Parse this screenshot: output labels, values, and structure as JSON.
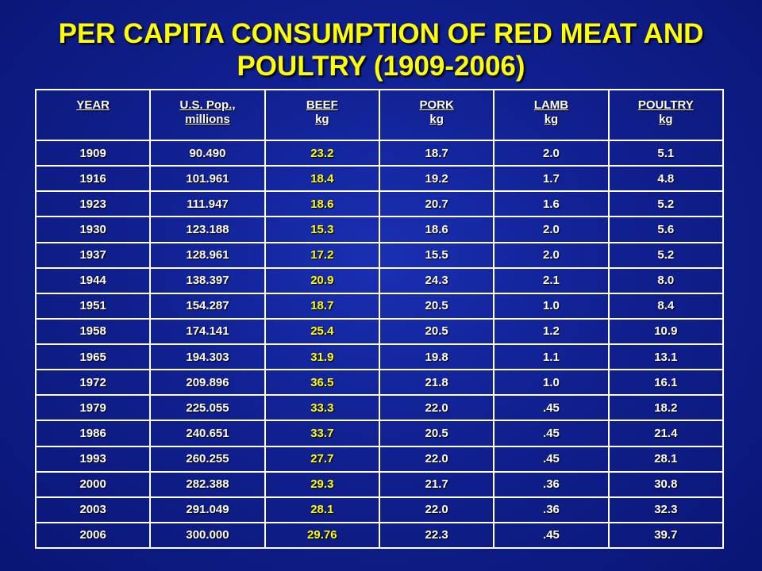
{
  "slide": {
    "title_line1": "PER CAPITA CONSUMPTION OF RED MEAT AND",
    "title_line2": "POULTRY (1909-2006)"
  },
  "table": {
    "headers": [
      {
        "line1": "YEAR",
        "line2": ""
      },
      {
        "line1": "U.S. Pop.,",
        "line2": "millions"
      },
      {
        "line1": "BEEF",
        "line2": "kg"
      },
      {
        "line1": "PORK",
        "line2": "kg"
      },
      {
        "line1": "LAMB",
        "line2": "kg"
      },
      {
        "line1": "POULTRY",
        "line2": "kg"
      }
    ],
    "rows": [
      [
        "1909",
        "90.490",
        "23.2",
        "18.7",
        "2.0",
        "5.1"
      ],
      [
        "1916",
        "101.961",
        "18.4",
        "19.2",
        "1.7",
        "4.8"
      ],
      [
        "1923",
        "111.947",
        "18.6",
        "20.7",
        "1.6",
        "5.2"
      ],
      [
        "1930",
        "123.188",
        "15.3",
        "18.6",
        "2.0",
        "5.6"
      ],
      [
        "1937",
        "128.961",
        "17.2",
        "15.5",
        "2.0",
        "5.2"
      ],
      [
        "1944",
        "138.397",
        "20.9",
        "24.3",
        "2.1",
        "8.0"
      ],
      [
        "1951",
        "154.287",
        "18.7",
        "20.5",
        "1.0",
        "8.4"
      ],
      [
        "1958",
        "174.141",
        "25.4",
        "20.5",
        "1.2",
        "10.9"
      ],
      [
        "1965",
        "194.303",
        "31.9",
        "19.8",
        "1.1",
        "13.1"
      ],
      [
        "1972",
        "209.896",
        "36.5",
        "21.8",
        "1.0",
        "16.1"
      ],
      [
        "1979",
        "225.055",
        "33.3",
        "22.0",
        ".45",
        "18.2"
      ],
      [
        "1986",
        "240.651",
        "33.7",
        "20.5",
        ".45",
        "21.4"
      ],
      [
        "1993",
        "260.255",
        "27.7",
        "22.0",
        ".45",
        "28.1"
      ],
      [
        "2000",
        "282.388",
        "29.3",
        "21.7",
        ".36",
        "30.8"
      ],
      [
        "2003",
        "291.049",
        "28.1",
        "22.0",
        ".36",
        "32.3"
      ],
      [
        "2006",
        "300.000",
        "29.76",
        "22.3",
        ".45",
        "39.7"
      ]
    ]
  },
  "colors": {
    "background": "#10208f",
    "title": "#ffff00",
    "beef_column": "#ffff00",
    "text": "#ffffff",
    "grid": "#ffffff"
  }
}
